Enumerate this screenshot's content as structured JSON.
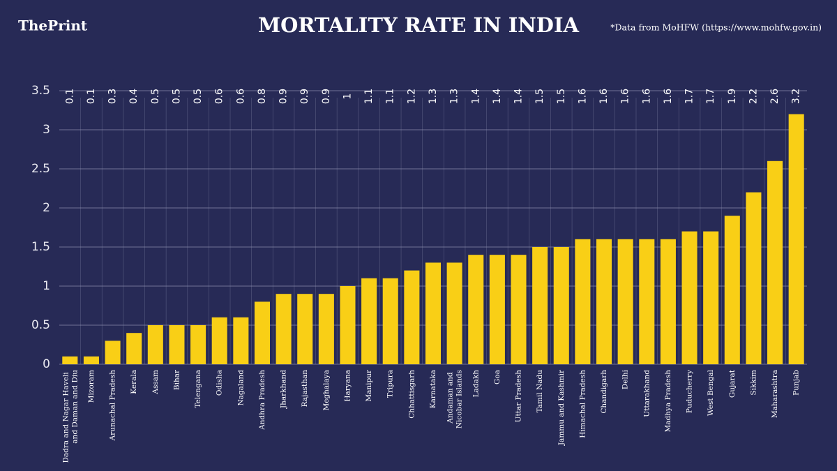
{
  "brand": "ThePrint",
  "chart_data": {
    "type": "bar",
    "title": "MORTALITY RATE IN INDIA",
    "source": "*Data from MoHFW (https://www.mohfw.gov.in)",
    "categories": [
      "Dadra and Nagar Haveli and Daman and Diu",
      "Mizoram",
      "Arunachal Pradesh",
      "Kerala",
      "Assam",
      "Bihar",
      "Telengana",
      "Odisha",
      "Nagaland",
      "Andhra Pradesh",
      "Jharkhand",
      "Rajasthan",
      "Meghalaya",
      "Haryana",
      "Manipur",
      "Tripura",
      "Chhattisgarh",
      "Karnataka",
      "Andaman and Nicobar Islands",
      "Ladakh",
      "Goa",
      "Uttar Pradesh",
      "Tamil Nadu",
      "Jammu and Kashmir",
      "Himachal Pradesh",
      "Chandigarh",
      "Delhi",
      "Uttarakhand",
      "Madhya Pradesh",
      "Puducherry",
      "West Bengal",
      "Gujarat",
      "Sikkim",
      "Maharashtra",
      "Punjab"
    ],
    "values": [
      0.1,
      0.1,
      0.3,
      0.4,
      0.5,
      0.5,
      0.5,
      0.6,
      0.6,
      0.8,
      0.9,
      0.9,
      0.9,
      1,
      1.1,
      1.1,
      1.2,
      1.3,
      1.3,
      1.4,
      1.4,
      1.4,
      1.5,
      1.5,
      1.6,
      1.6,
      1.6,
      1.6,
      1.6,
      1.7,
      1.7,
      1.9,
      2.2,
      2.6,
      3.2
    ],
    "color": "#f9cf16",
    "ylim": [
      0,
      3.5
    ],
    "yticks": [
      0,
      0.5,
      1,
      1.5,
      2,
      2.5,
      3,
      3.5
    ],
    "grid": true
  }
}
